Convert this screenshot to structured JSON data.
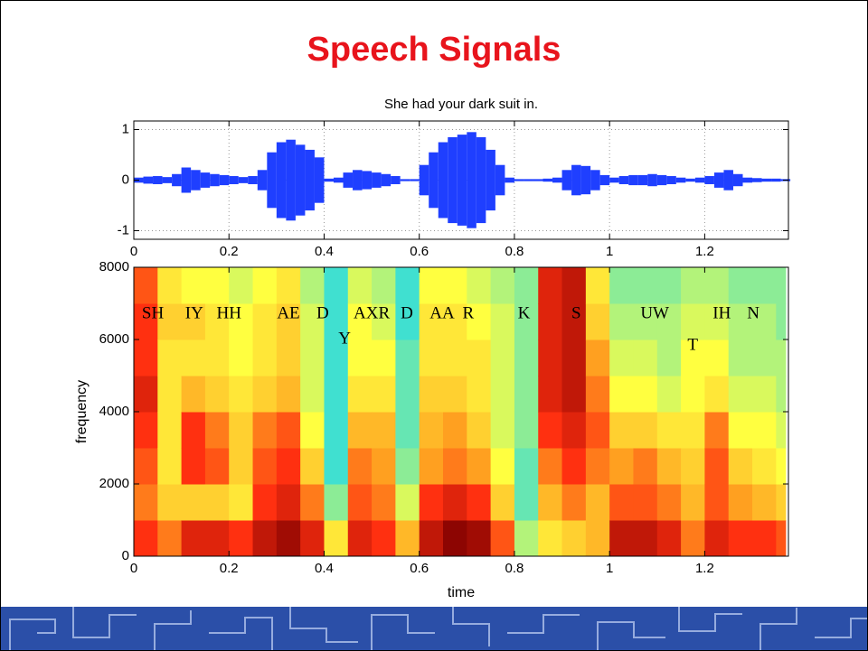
{
  "title": "Speech Signals",
  "chart_data": [
    {
      "type": "area",
      "title": "She had your dark suit in.",
      "color": "#1f3fff",
      "grid": true,
      "x": [
        0,
        0.02,
        0.04,
        0.06,
        0.08,
        0.1,
        0.12,
        0.14,
        0.16,
        0.18,
        0.2,
        0.22,
        0.24,
        0.26,
        0.28,
        0.3,
        0.32,
        0.34,
        0.36,
        0.38,
        0.4,
        0.42,
        0.44,
        0.46,
        0.48,
        0.5,
        0.52,
        0.54,
        0.56,
        0.58,
        0.6,
        0.62,
        0.64,
        0.66,
        0.68,
        0.7,
        0.72,
        0.74,
        0.76,
        0.78,
        0.8,
        0.82,
        0.84,
        0.86,
        0.88,
        0.9,
        0.92,
        0.94,
        0.96,
        0.98,
        1.0,
        1.02,
        1.04,
        1.06,
        1.08,
        1.1,
        1.12,
        1.14,
        1.16,
        1.18,
        1.2,
        1.22,
        1.24,
        1.26,
        1.28,
        1.3,
        1.32,
        1.34,
        1.36
      ],
      "values": [
        0.05,
        0.07,
        0.08,
        0.06,
        0.12,
        0.25,
        0.2,
        0.15,
        0.12,
        0.1,
        0.08,
        0.06,
        0.08,
        0.2,
        0.55,
        0.75,
        0.8,
        0.7,
        0.6,
        0.45,
        0.03,
        0.05,
        0.15,
        0.2,
        0.18,
        0.15,
        0.12,
        0.08,
        0.02,
        0.02,
        0.3,
        0.55,
        0.75,
        0.85,
        0.9,
        0.95,
        0.85,
        0.6,
        0.3,
        0.05,
        0.02,
        0.02,
        0.02,
        0.03,
        0.05,
        0.2,
        0.3,
        0.28,
        0.2,
        0.1,
        0.05,
        0.08,
        0.1,
        0.1,
        0.12,
        0.1,
        0.08,
        0.05,
        0.03,
        0.05,
        0.08,
        0.15,
        0.2,
        0.12,
        0.05,
        0.04,
        0.03,
        0.03,
        0.02
      ],
      "xlim": [
        0,
        1.376
      ],
      "xticks": [
        0,
        0.2,
        0.4,
        0.6,
        0.8,
        1,
        1.2
      ],
      "ylim": [
        -1.17,
        1.17
      ],
      "yticks": [
        -1,
        0,
        1
      ]
    },
    {
      "type": "heatmap",
      "xlabel": "time",
      "ylabel": "frequency",
      "x_edges": [
        0,
        0.05,
        0.1,
        0.15,
        0.2,
        0.25,
        0.3,
        0.35,
        0.4,
        0.45,
        0.5,
        0.55,
        0.6,
        0.65,
        0.7,
        0.75,
        0.8,
        0.85,
        0.9,
        0.95,
        1.0,
        1.05,
        1.1,
        1.15,
        1.2,
        1.25,
        1.3,
        1.35,
        1.37
      ],
      "y_edges": [
        0,
        1000,
        2000,
        3000,
        4000,
        5000,
        6000,
        7000,
        8000
      ],
      "z": [
        [
          0.8,
          0.7,
          0.75,
          0.8,
          0.85,
          0.8,
          0.8,
          0.75
        ],
        [
          0.7,
          0.55,
          0.5,
          0.5,
          0.5,
          0.5,
          0.55,
          0.5
        ],
        [
          0.85,
          0.55,
          0.8,
          0.8,
          0.6,
          0.5,
          0.55,
          0.45
        ],
        [
          0.85,
          0.55,
          0.75,
          0.7,
          0.55,
          0.5,
          0.5,
          0.45
        ],
        [
          0.8,
          0.5,
          0.55,
          0.55,
          0.5,
          0.45,
          0.45,
          0.4
        ],
        [
          0.9,
          0.8,
          0.75,
          0.7,
          0.55,
          0.5,
          0.5,
          0.45
        ],
        [
          0.95,
          0.85,
          0.8,
          0.75,
          0.6,
          0.55,
          0.55,
          0.5
        ],
        [
          0.85,
          0.7,
          0.55,
          0.45,
          0.4,
          0.4,
          0.4,
          0.35
        ],
        [
          0.5,
          0.3,
          0.2,
          0.2,
          0.2,
          0.2,
          0.2,
          0.2
        ],
        [
          0.85,
          0.75,
          0.7,
          0.6,
          0.5,
          0.45,
          0.45,
          0.4
        ],
        [
          0.8,
          0.7,
          0.65,
          0.6,
          0.5,
          0.45,
          0.4,
          0.35
        ],
        [
          0.6,
          0.4,
          0.3,
          0.25,
          0.25,
          0.25,
          0.2,
          0.2
        ],
        [
          0.9,
          0.8,
          0.65,
          0.6,
          0.55,
          0.5,
          0.5,
          0.45
        ],
        [
          0.98,
          0.85,
          0.7,
          0.65,
          0.55,
          0.5,
          0.5,
          0.45
        ],
        [
          0.95,
          0.8,
          0.65,
          0.55,
          0.5,
          0.5,
          0.45,
          0.4
        ],
        [
          0.75,
          0.55,
          0.45,
          0.4,
          0.4,
          0.4,
          0.4,
          0.35
        ],
        [
          0.35,
          0.25,
          0.25,
          0.3,
          0.3,
          0.3,
          0.3,
          0.3
        ],
        [
          0.5,
          0.6,
          0.7,
          0.8,
          0.85,
          0.85,
          0.85,
          0.85
        ],
        [
          0.55,
          0.7,
          0.8,
          0.85,
          0.9,
          0.9,
          0.9,
          0.9
        ],
        [
          0.6,
          0.6,
          0.7,
          0.75,
          0.7,
          0.65,
          0.55,
          0.5
        ],
        [
          0.9,
          0.75,
          0.65,
          0.55,
          0.45,
          0.4,
          0.35,
          0.3
        ],
        [
          0.9,
          0.75,
          0.7,
          0.55,
          0.45,
          0.4,
          0.35,
          0.3
        ],
        [
          0.85,
          0.7,
          0.6,
          0.5,
          0.4,
          0.35,
          0.35,
          0.3
        ],
        [
          0.7,
          0.6,
          0.55,
          0.5,
          0.45,
          0.45,
          0.4,
          0.35
        ],
        [
          0.85,
          0.75,
          0.75,
          0.7,
          0.5,
          0.45,
          0.4,
          0.35
        ],
        [
          0.8,
          0.65,
          0.55,
          0.45,
          0.4,
          0.35,
          0.35,
          0.3
        ],
        [
          0.8,
          0.6,
          0.5,
          0.45,
          0.4,
          0.35,
          0.35,
          0.3
        ],
        [
          0.75,
          0.55,
          0.45,
          0.4,
          0.35,
          0.35,
          0.3,
          0.3
        ]
      ],
      "xlim": [
        0,
        1.376
      ],
      "xticks": [
        0,
        0.2,
        0.4,
        0.6,
        0.8,
        1,
        1.2
      ],
      "ylim": [
        0,
        8000
      ],
      "yticks": [
        0,
        2000,
        4000,
        6000,
        8000
      ],
      "annotations": [
        {
          "text": "SH",
          "x": 0.04,
          "y": 6700
        },
        {
          "text": "IY",
          "x": 0.127,
          "y": 6700
        },
        {
          "text": "HH",
          "x": 0.2,
          "y": 6700
        },
        {
          "text": "AE",
          "x": 0.325,
          "y": 6700
        },
        {
          "text": "D",
          "x": 0.397,
          "y": 6700
        },
        {
          "text": "Y",
          "x": 0.443,
          "y": 6000
        },
        {
          "text": "AXR",
          "x": 0.5,
          "y": 6700
        },
        {
          "text": "D",
          "x": 0.574,
          "y": 6700
        },
        {
          "text": "AA",
          "x": 0.648,
          "y": 6700
        },
        {
          "text": "R",
          "x": 0.703,
          "y": 6700
        },
        {
          "text": "K",
          "x": 0.82,
          "y": 6700
        },
        {
          "text": "S",
          "x": 0.93,
          "y": 6700
        },
        {
          "text": "UW",
          "x": 1.095,
          "y": 6700
        },
        {
          "text": "T",
          "x": 1.175,
          "y": 5825
        },
        {
          "text": "IH",
          "x": 1.236,
          "y": 6700
        },
        {
          "text": "N",
          "x": 1.302,
          "y": 6700
        }
      ]
    }
  ]
}
